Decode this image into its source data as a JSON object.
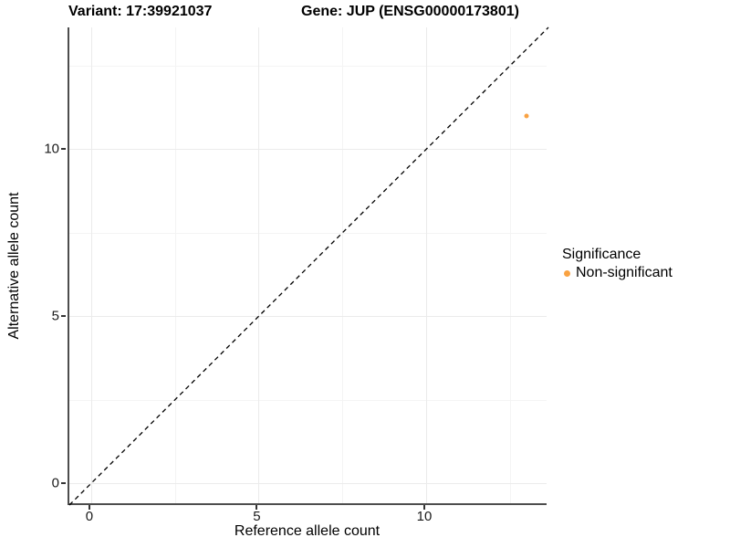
{
  "titles": {
    "variant": "Variant: 17:39921037",
    "gene": "Gene: JUP (ENSG00000173801)"
  },
  "legend": {
    "title": "Significance",
    "entries": [
      {
        "label": "Non-significant",
        "color": "#F9A242"
      }
    ]
  },
  "chart_data": {
    "type": "scatter",
    "title_left": "Variant: 17:39921037",
    "title_right": "Gene: JUP (ENSG00000173801)",
    "xlabel": "Reference allele count",
    "ylabel": "Alternative allele count",
    "xlim": [
      -0.65,
      13.65
    ],
    "ylim": [
      -0.65,
      13.65
    ],
    "xticks": [
      0,
      5,
      10
    ],
    "yticks": [
      0,
      5,
      10
    ],
    "minor_xticks": [
      2.5,
      7.5,
      12.5
    ],
    "minor_yticks": [
      2.5,
      7.5,
      12.5
    ],
    "grid": true,
    "legend_position": "right",
    "identity_line": {
      "style": "dashed",
      "slope": 1,
      "intercept": 0,
      "color": "#000000"
    },
    "series": [
      {
        "name": "Non-significant",
        "color": "#F9A242",
        "points": [
          {
            "x": 13,
            "y": 11
          }
        ]
      }
    ],
    "style_colors": {
      "background": "#ffffff",
      "grid_major": "#ebebeb",
      "grid_minor": "#f4f4f4",
      "axis_line": "#4d4d4d",
      "tick": "#333333"
    }
  }
}
